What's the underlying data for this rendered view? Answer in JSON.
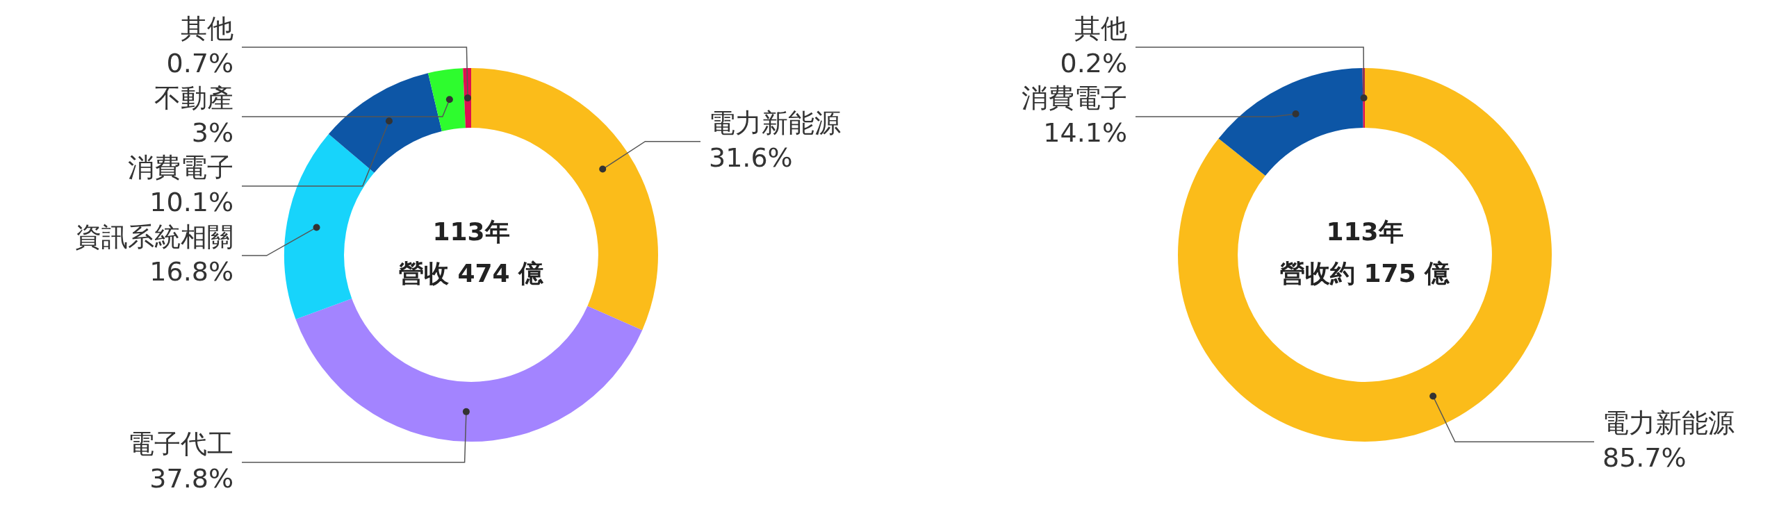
{
  "chart_data": [
    {
      "type": "donut",
      "title": "113年",
      "subtitle": "營收 474 億",
      "categories": [
        "電力新能源",
        "電子代工",
        "資訊系統相關",
        "消費電子",
        "不動產",
        "其他"
      ],
      "values": [
        31.6,
        37.8,
        16.8,
        10.1,
        3,
        0.7
      ],
      "value_labels": [
        "31.6%",
        "37.8%",
        "16.8%",
        "10.1%",
        "3%",
        "0.7%"
      ],
      "colors": [
        "#fbbc1a",
        "#a384ff",
        "#17d4fb",
        "#0d56a6",
        "#2efc2e",
        "#de1050"
      ],
      "legend": false
    },
    {
      "type": "donut",
      "title": "113年",
      "subtitle": "營收約 175 億",
      "categories": [
        "電力新能源",
        "消費電子",
        "其他"
      ],
      "values": [
        85.7,
        14.1,
        0.2
      ],
      "value_labels": [
        "85.7%",
        "14.1%",
        "0.2%"
      ],
      "colors": [
        "#fbbc1a",
        "#0d56a6",
        "#de1050"
      ],
      "legend": false
    }
  ]
}
